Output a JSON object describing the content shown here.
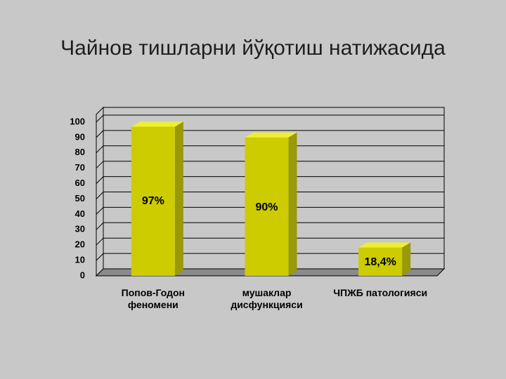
{
  "chart_data": {
    "type": "bar",
    "title": "Чайнов тишларни йўқотиш натижасида",
    "categories": [
      "Попов-Годон феномени",
      "мушаклар дисфункцияси",
      "ЧПЖБ патологияси"
    ],
    "values": [
      97,
      90,
      18.4
    ],
    "value_labels": [
      "97%",
      "90%",
      "18,4%"
    ],
    "color": "#cccc00",
    "ylim": [
      0,
      100
    ],
    "yticks": [
      0,
      10,
      20,
      30,
      40,
      50,
      60,
      70,
      80,
      90,
      100
    ],
    "grid": true
  }
}
